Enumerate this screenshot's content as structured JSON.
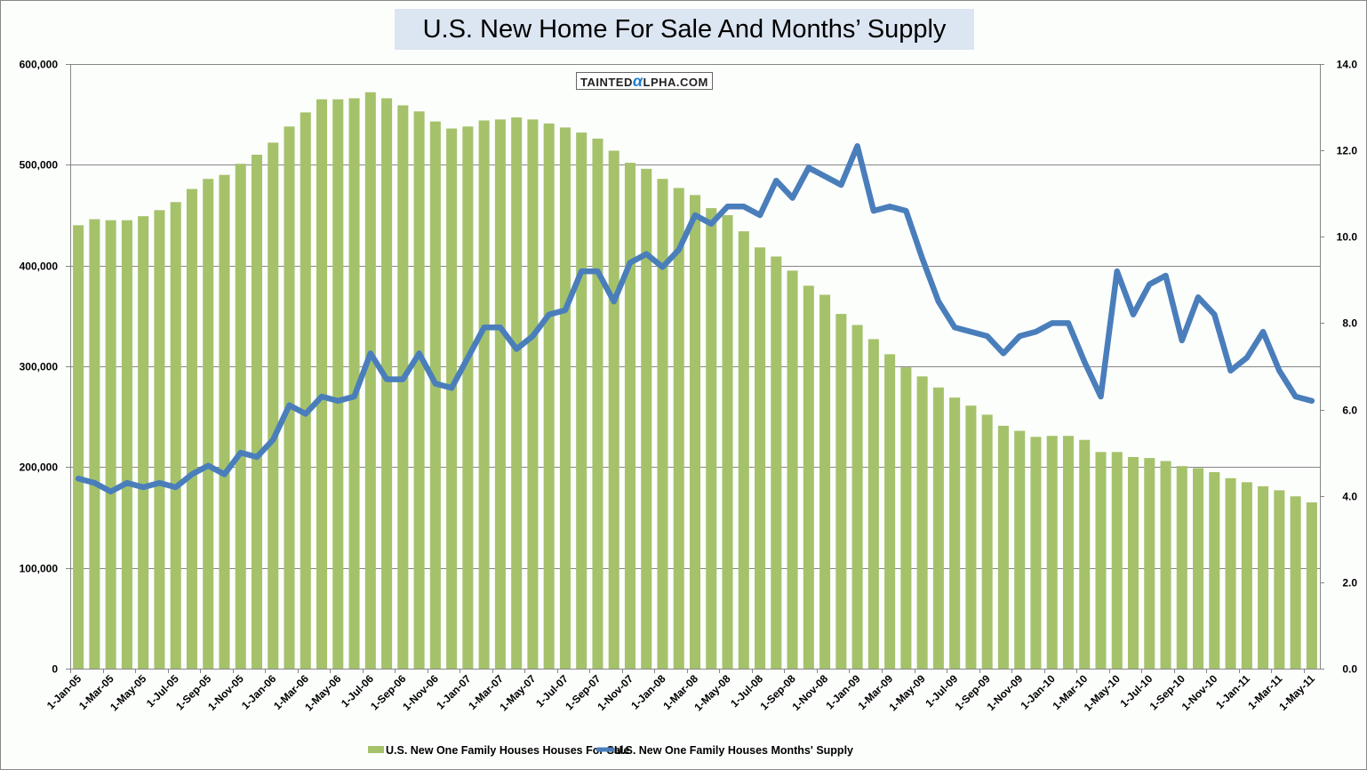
{
  "colors": {
    "bar": "#a5c26b",
    "line": "#4a7ebb",
    "grid": "#868686",
    "title_bg": "#dce6f2"
  },
  "watermark": {
    "prefix": "TAINTED",
    "alpha_glyph": "α",
    "suffix": "LPHA.COM"
  },
  "chart_data": {
    "type": "bar",
    "title": "U.S. New Home For Sale And Months’ Supply",
    "xlabel": "",
    "ylabel": "",
    "y2label": "",
    "ylim": [
      0,
      600000
    ],
    "y2lim": [
      0,
      14
    ],
    "yticks": [
      "0",
      "100,000",
      "200,000",
      "300,000",
      "400,000",
      "500,000",
      "600,000"
    ],
    "y2ticks": [
      "0.0",
      "2.0",
      "4.0",
      "6.0",
      "8.0",
      "10.0",
      "12.0",
      "14.0"
    ],
    "grid": true,
    "legend_position": "bottom",
    "categories": [
      "1-Jan-05",
      "1-Feb-05",
      "1-Mar-05",
      "1-Apr-05",
      "1-May-05",
      "1-Jun-05",
      "1-Jul-05",
      "1-Aug-05",
      "1-Sep-05",
      "1-Oct-05",
      "1-Nov-05",
      "1-Dec-05",
      "1-Jan-06",
      "1-Feb-06",
      "1-Mar-06",
      "1-Apr-06",
      "1-May-06",
      "1-Jun-06",
      "1-Jul-06",
      "1-Aug-06",
      "1-Sep-06",
      "1-Oct-06",
      "1-Nov-06",
      "1-Dec-06",
      "1-Jan-07",
      "1-Feb-07",
      "1-Mar-07",
      "1-Apr-07",
      "1-May-07",
      "1-Jun-07",
      "1-Jul-07",
      "1-Aug-07",
      "1-Sep-07",
      "1-Oct-07",
      "1-Nov-07",
      "1-Dec-07",
      "1-Jan-08",
      "1-Feb-08",
      "1-Mar-08",
      "1-Apr-08",
      "1-May-08",
      "1-Jun-08",
      "1-Jul-08",
      "1-Aug-08",
      "1-Sep-08",
      "1-Oct-08",
      "1-Nov-08",
      "1-Dec-08",
      "1-Jan-09",
      "1-Feb-09",
      "1-Mar-09",
      "1-Apr-09",
      "1-May-09",
      "1-Jun-09",
      "1-Jul-09",
      "1-Aug-09",
      "1-Sep-09",
      "1-Oct-09",
      "1-Nov-09",
      "1-Dec-09",
      "1-Jan-10",
      "1-Feb-10",
      "1-Mar-10",
      "1-Apr-10",
      "1-May-10",
      "1-Jun-10",
      "1-Jul-10",
      "1-Aug-10",
      "1-Sep-10",
      "1-Oct-10",
      "1-Nov-10",
      "1-Dec-10",
      "1-Jan-11",
      "1-Feb-11",
      "1-Mar-11",
      "1-Apr-11",
      "1-May-11"
    ],
    "tick_label_every": 2,
    "series": [
      {
        "name": "U.S. New One Family Houses Houses For Sale",
        "type": "bar",
        "axis": "left",
        "values": [
          440000,
          446000,
          445000,
          445000,
          449000,
          455000,
          463000,
          476000,
          486000,
          490000,
          501000,
          510000,
          522000,
          538000,
          552000,
          565000,
          565000,
          566000,
          572000,
          566000,
          559000,
          553000,
          543000,
          536000,
          538000,
          544000,
          545000,
          547000,
          545000,
          541000,
          537000,
          532000,
          526000,
          514000,
          502000,
          496000,
          486000,
          477000,
          470000,
          457000,
          450000,
          434000,
          418000,
          409000,
          395000,
          380000,
          371000,
          352000,
          341000,
          327000,
          312000,
          299000,
          290000,
          279000,
          269000,
          261000,
          252000,
          241000,
          236000,
          230000,
          231000,
          231000,
          227000,
          215000,
          215000,
          210000,
          209000,
          206000,
          201000,
          199000,
          195000,
          189000,
          185000,
          181000,
          177000,
          171000,
          165000
        ]
      },
      {
        "name": "U.S. New One Family Houses Months'  Supply",
        "type": "line",
        "axis": "right",
        "values": [
          4.4,
          4.3,
          4.1,
          4.3,
          4.2,
          4.3,
          4.2,
          4.5,
          4.7,
          4.5,
          5.0,
          4.9,
          5.3,
          6.1,
          5.9,
          6.3,
          6.2,
          6.3,
          7.3,
          6.7,
          6.7,
          7.3,
          6.6,
          6.5,
          7.2,
          7.9,
          7.9,
          7.4,
          7.7,
          8.2,
          8.3,
          9.2,
          9.2,
          8.5,
          9.4,
          9.6,
          9.3,
          9.7,
          10.5,
          10.3,
          10.7,
          10.7,
          10.5,
          11.3,
          10.9,
          11.6,
          11.4,
          11.2,
          12.1,
          10.6,
          10.7,
          10.6,
          9.5,
          8.5,
          7.9,
          7.8,
          7.7,
          7.3,
          7.7,
          7.8,
          8.0,
          8.0,
          7.1,
          6.3,
          9.2,
          8.2,
          8.9,
          9.1,
          7.6,
          8.6,
          8.2,
          6.9,
          7.2,
          7.8,
          6.9,
          6.3,
          6.2
        ]
      }
    ]
  }
}
